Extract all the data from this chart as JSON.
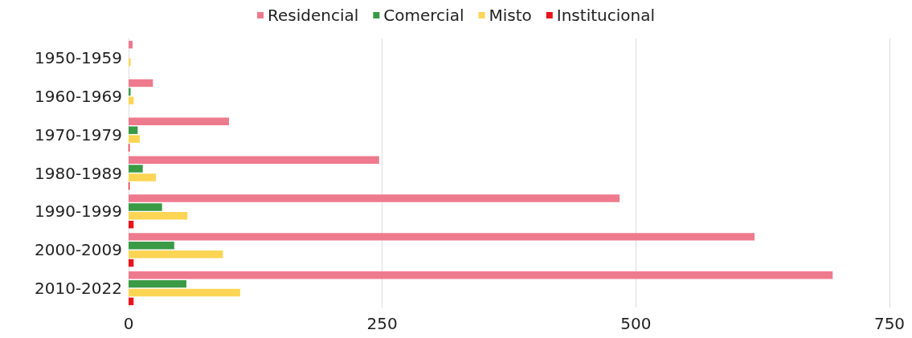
{
  "chart_data": {
    "type": "bar",
    "orientation": "horizontal",
    "categories": [
      "1950-1959",
      "1960-1969",
      "1970-1979",
      "1980-1989",
      "1990-1999",
      "2000-2009",
      "2010-2022"
    ],
    "series": [
      {
        "name": "Residencial",
        "color": "#ee7a8e",
        "values": [
          4,
          24,
          99,
          247,
          484,
          617,
          694
        ]
      },
      {
        "name": "Comercial",
        "color": "#3a9a45",
        "values": [
          0,
          2,
          9,
          14,
          33,
          45,
          57
        ]
      },
      {
        "name": "Misto",
        "color": "#fdd555",
        "values": [
          2,
          5,
          11,
          27,
          58,
          93,
          110
        ]
      },
      {
        "name": "Institucional",
        "color": "#e8141c",
        "values": [
          0,
          0,
          1,
          1,
          5,
          5,
          5
        ]
      }
    ],
    "xlim": [
      0,
      750
    ],
    "xticks": [
      0,
      250,
      500,
      750
    ],
    "grid": "x",
    "legend": "top"
  }
}
